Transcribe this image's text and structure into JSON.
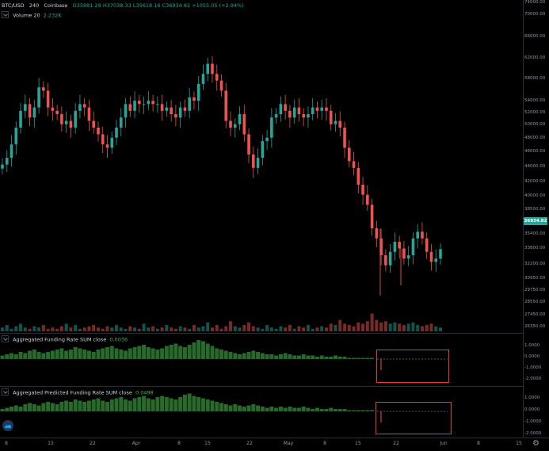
{
  "symbol_legend": {
    "pair": "BTC/USD",
    "interval": "240",
    "exchange": "Coinbase",
    "open": "O35881.29",
    "high": "H37038.33",
    "low": "L35618.16",
    "close": "C36934.82",
    "change": "+1055.05 (+2.94%)"
  },
  "volume_legend": {
    "name": "Volume 20",
    "value": "2.232K"
  },
  "price_axis": {
    "ticks": [
      "74000.00",
      "70000.00",
      "66000.00",
      "62000.00",
      "58000.00",
      "54000.00",
      "52000.00",
      "50000.00",
      "48000.00",
      "46000.00",
      "44000.00",
      "42000.00",
      "40000.00",
      "38500.00",
      "35400.00",
      "33800.00",
      "32200.00",
      "30950.00",
      "29750.00",
      "28550.00",
      "27450.00",
      "26350.00"
    ],
    "last_price": "36934.82"
  },
  "indicator1": {
    "name": "Aggregated Funding Rate SUM close",
    "value": "0.0036",
    "ticks": [
      "1.0000",
      "0.0000",
      "-1.0000",
      "-2.0000"
    ]
  },
  "indicator2": {
    "name": "Aggregated Predicted Funding Rate SUM close",
    "value": "0.0498",
    "ticks": [
      "1.0000",
      "0.0000",
      "-1.0000",
      "-2.0000"
    ]
  },
  "time_axis": [
    "8",
    "15",
    "22",
    "Apr",
    "8",
    "15",
    "22",
    "May",
    "8",
    "15",
    "22",
    "Jun",
    "8",
    "15"
  ],
  "colors": {
    "up": "#26a69a",
    "down": "#ef5350",
    "funding": "#2e7d32",
    "highlight": "#e53935",
    "background": "#000000"
  },
  "icons": [
    "chevron-down-icon",
    "logo-icon",
    "settings-gear-icon"
  ],
  "candles_close": [
    49500,
    50500,
    52500,
    55000,
    57500,
    58500,
    56500,
    58000,
    61000,
    60500,
    58000,
    57500,
    57000,
    55500,
    56000,
    55000,
    57500,
    58500,
    58000,
    56000,
    55000,
    54000,
    52500,
    52000,
    53500,
    55000,
    56500,
    58500,
    57500,
    59000,
    58500,
    58500,
    59000,
    58500,
    58500,
    57500,
    58000,
    57000,
    56500,
    58000,
    57500,
    59500,
    59000,
    61500,
    63000,
    64500,
    63000,
    62000,
    60500,
    56000,
    55000,
    55500,
    57000,
    54000,
    51000,
    49000,
    50500,
    53000,
    53500,
    56500,
    57000,
    58500,
    57500,
    56500,
    58000,
    57000,
    56500,
    57000,
    58000,
    57500,
    58000,
    57500,
    55500,
    56000,
    55000,
    52000,
    50000,
    49000,
    46500,
    45000,
    43500,
    40000,
    38500,
    36000,
    34500,
    36500,
    38000,
    37000,
    35500,
    36000,
    38500,
    39500,
    38500,
    36500,
    35000,
    35500,
    36900
  ],
  "volumes": [
    3,
    5,
    2,
    4,
    6,
    3,
    2,
    4,
    3,
    5,
    2,
    3,
    2,
    4,
    6,
    3,
    5,
    2,
    3,
    4,
    5,
    3,
    2,
    4,
    3,
    5,
    3,
    2,
    4,
    3,
    2,
    6,
    3,
    4,
    2,
    3,
    5,
    3,
    2,
    4,
    3,
    2,
    5,
    3,
    4,
    7,
    3,
    5,
    2,
    4,
    8,
    4,
    3,
    5,
    7,
    4,
    3,
    2,
    5,
    3,
    2,
    4,
    3,
    5,
    2,
    4,
    3,
    5,
    2,
    3,
    4,
    3,
    6,
    5,
    9,
    6,
    5,
    4,
    7,
    6,
    8,
    14,
    9,
    7,
    8,
    6,
    7,
    6,
    5,
    6,
    7,
    5,
    4,
    5,
    6,
    4,
    3
  ],
  "funding": [
    3,
    4,
    5,
    4,
    6,
    5,
    7,
    8,
    6,
    5,
    6,
    7,
    8,
    9,
    7,
    8,
    10,
    9,
    8,
    7,
    6,
    8,
    9,
    10,
    11,
    9,
    8,
    7,
    9,
    10,
    11,
    12,
    10,
    9,
    8,
    9,
    11,
    12,
    13,
    11,
    10,
    12,
    14,
    16,
    15,
    13,
    11,
    9,
    8,
    7,
    6,
    5,
    4,
    5,
    6,
    7,
    6,
    5,
    4,
    4,
    3,
    4,
    5,
    4,
    3,
    3,
    4,
    3,
    3,
    2,
    3,
    2,
    2,
    3,
    2,
    2,
    1,
    1,
    1,
    1,
    1,
    1,
    0,
    0,
    0,
    0,
    0,
    0,
    0,
    0,
    0,
    0,
    0,
    0,
    0,
    0,
    0
  ],
  "predicted": [
    2,
    3,
    4,
    5,
    4,
    6,
    7,
    6,
    5,
    7,
    8,
    7,
    6,
    8,
    9,
    8,
    10,
    9,
    8,
    9,
    10,
    11,
    9,
    8,
    10,
    11,
    12,
    10,
    9,
    11,
    12,
    13,
    11,
    10,
    12,
    13,
    12,
    11,
    10,
    12,
    14,
    15,
    13,
    12,
    11,
    10,
    9,
    8,
    7,
    6,
    5,
    6,
    5,
    4,
    5,
    6,
    5,
    4,
    3,
    4,
    3,
    4,
    3,
    4,
    3,
    3,
    4,
    3,
    2,
    3,
    2,
    2,
    3,
    2,
    2,
    2,
    1,
    1,
    1,
    1,
    1,
    1,
    0,
    0,
    0,
    0,
    0,
    0,
    0,
    0,
    0,
    0,
    0,
    0,
    0,
    0,
    0
  ]
}
